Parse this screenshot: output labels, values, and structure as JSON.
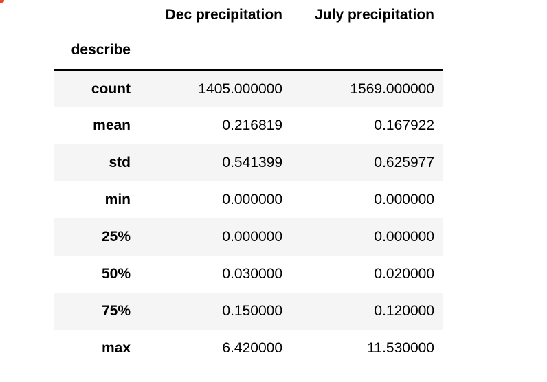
{
  "colors": {
    "stripe": "#f5f5f5",
    "text": "#000000",
    "corner_accent": "#e8452c"
  },
  "table": {
    "columns": [
      "Dec precipitation",
      "July precipitation"
    ],
    "index_name": "describe",
    "rows": [
      {
        "label": "count",
        "values": [
          "1405.000000",
          "1569.000000"
        ]
      },
      {
        "label": "mean",
        "values": [
          "0.216819",
          "0.167922"
        ]
      },
      {
        "label": "std",
        "values": [
          "0.541399",
          "0.625977"
        ]
      },
      {
        "label": "min",
        "values": [
          "0.000000",
          "0.000000"
        ]
      },
      {
        "label": "25%",
        "values": [
          "0.000000",
          "0.000000"
        ]
      },
      {
        "label": "50%",
        "values": [
          "0.030000",
          "0.020000"
        ]
      },
      {
        "label": "75%",
        "values": [
          "0.150000",
          "0.120000"
        ]
      },
      {
        "label": "max",
        "values": [
          "6.420000",
          "11.530000"
        ]
      }
    ]
  }
}
